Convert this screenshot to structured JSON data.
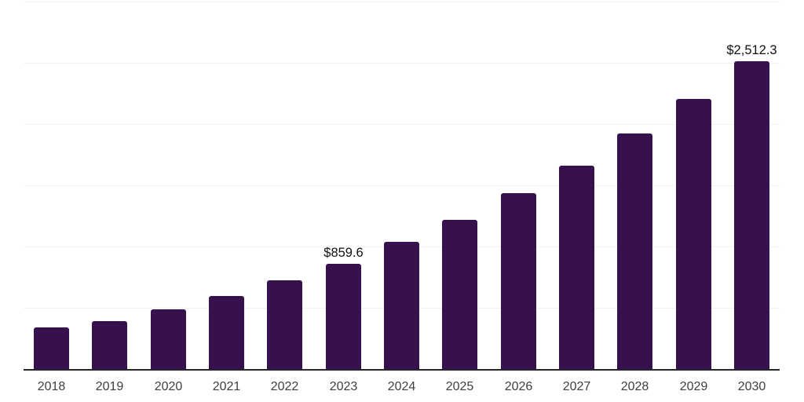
{
  "chart": {
    "colors": {
      "bar": "#36114D",
      "gridline": "#f1f1f1",
      "axis": "#26262a",
      "tick_label": "#3f3f3f",
      "value_label": "#101010"
    }
  },
  "chart_data": {
    "type": "bar",
    "categories": [
      "2018",
      "2019",
      "2020",
      "2021",
      "2022",
      "2023",
      "2024",
      "2025",
      "2026",
      "2027",
      "2028",
      "2029",
      "2030"
    ],
    "values": [
      338,
      390,
      485,
      593,
      727,
      859.6,
      1040,
      1218,
      1435,
      1658,
      1920,
      2206,
      2512.3
    ],
    "value_labels": [
      "",
      "",
      "",
      "",
      "",
      "$859.6",
      "",
      "",
      "",
      "",
      "",
      "",
      "$2,512.3"
    ],
    "title": "",
    "xlabel": "",
    "ylabel": "",
    "ylim": [
      0,
      3000
    ],
    "grid_values": [
      500,
      1000,
      1500,
      2000,
      2500,
      3000
    ],
    "legend": null,
    "grid": "horizontal only, no y-axis tick labels"
  }
}
